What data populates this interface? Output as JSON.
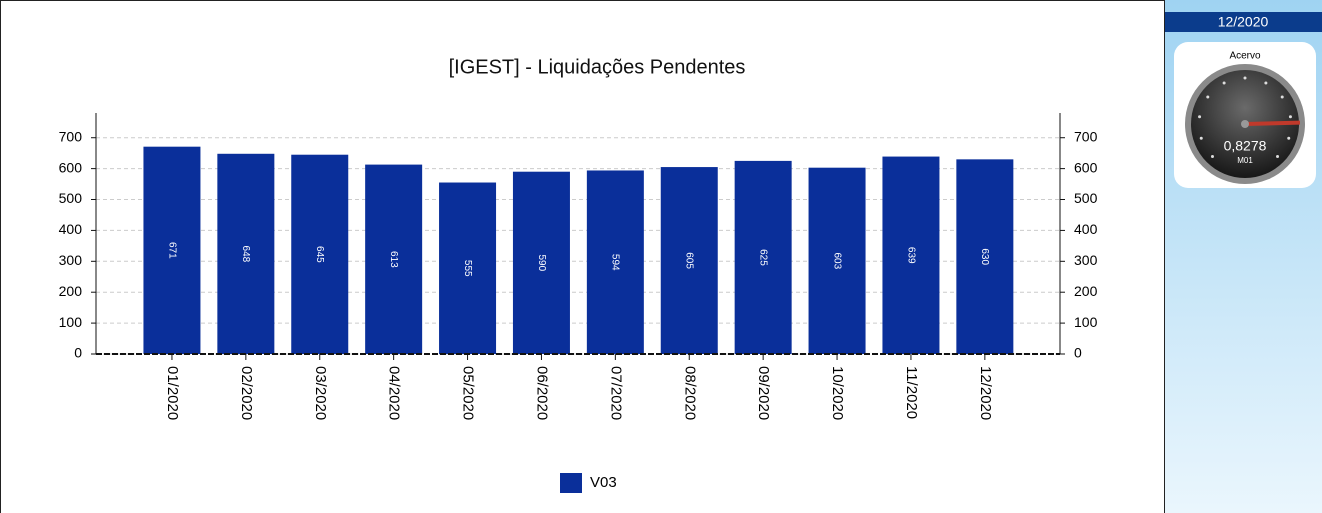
{
  "chart_data": {
    "type": "bar",
    "title": "[IGEST]  - Liquidações Pendentes",
    "categories": [
      "01/2020",
      "02/2020",
      "03/2020",
      "04/2020",
      "05/2020",
      "06/2020",
      "07/2020",
      "08/2020",
      "09/2020",
      "10/2020",
      "11/2020",
      "12/2020"
    ],
    "series": [
      {
        "name": "V03",
        "color": "#0a2f9a",
        "values": [
          671,
          648,
          645,
          613,
          555,
          590,
          594,
          605,
          625,
          603,
          639,
          630
        ]
      }
    ],
    "ylim": [
      0,
      780
    ],
    "yticks": [
      0,
      100,
      200,
      300,
      400,
      500,
      600,
      700
    ],
    "y2lim": [
      0,
      780
    ],
    "y2ticks": [
      0,
      100,
      200,
      300,
      400,
      500,
      600,
      700
    ],
    "grid": true,
    "legend": "bottom"
  },
  "panel": {
    "period": "12/2020",
    "gauge": {
      "title": "Acervo",
      "value": 0.8278,
      "value_label": "0,8278",
      "unit": "M01"
    }
  }
}
